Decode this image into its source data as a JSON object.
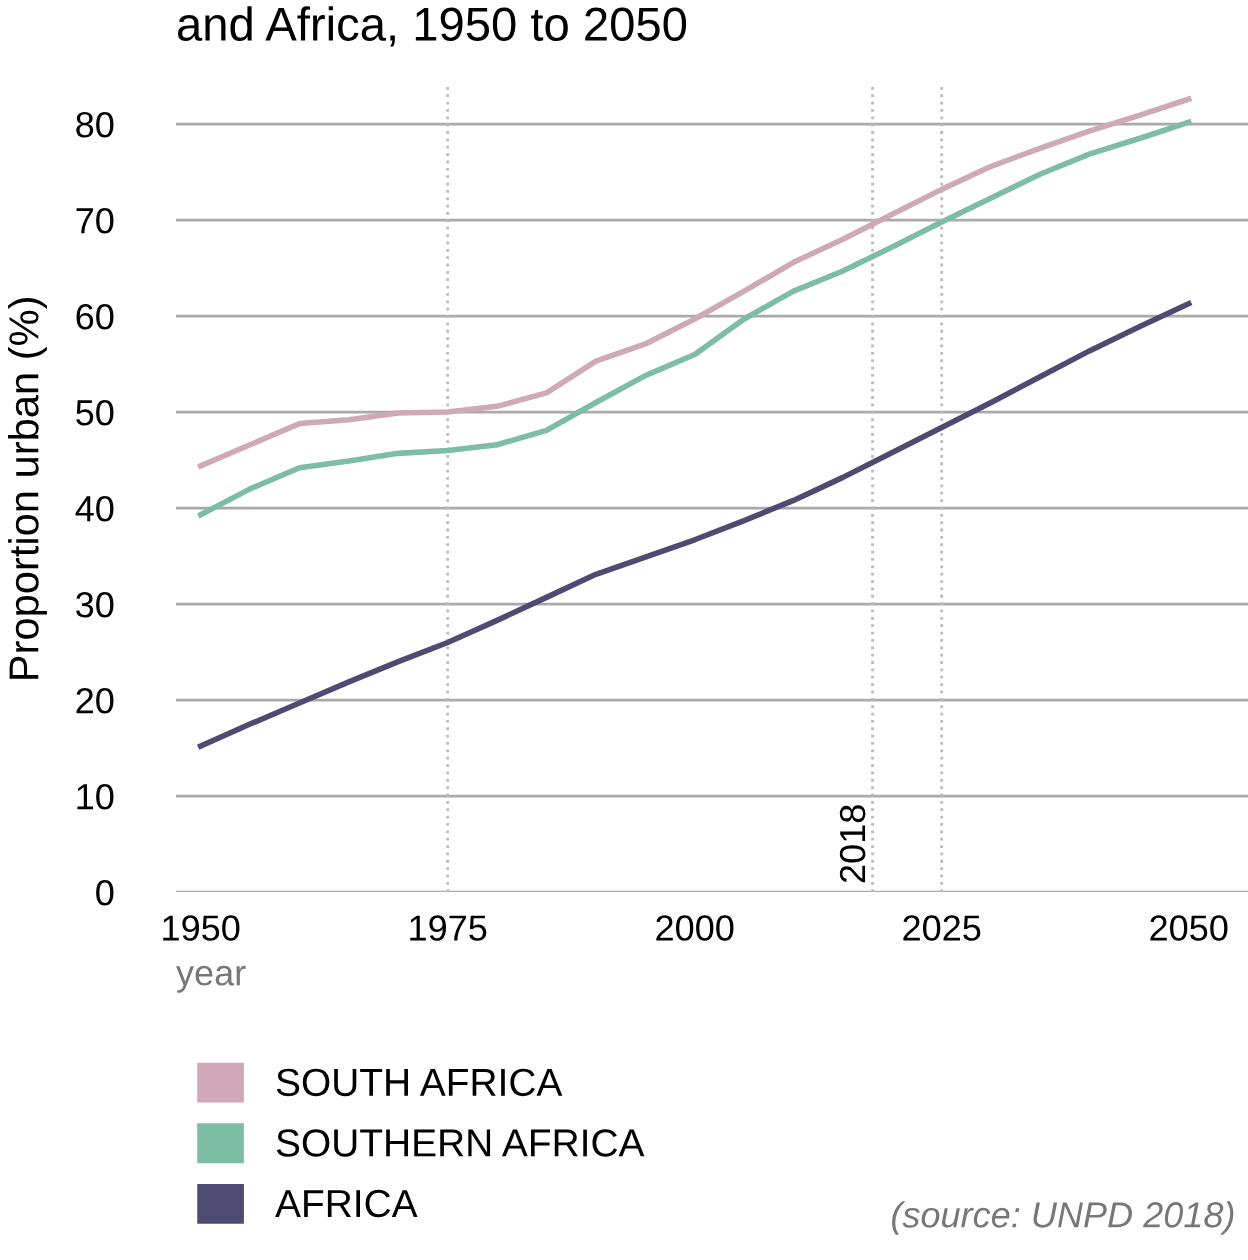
{
  "chart_data": {
    "type": "line",
    "title": "and Africa, 1950 to 2050",
    "xlabel": "year",
    "ylabel": "Proportion urban (%)",
    "x": [
      1950,
      1955,
      1960,
      1965,
      1970,
      1975,
      1980,
      1985,
      1990,
      1995,
      2000,
      2005,
      2010,
      2015,
      2020,
      2025,
      2030,
      2035,
      2040,
      2045,
      2050
    ],
    "series": [
      {
        "name": "SOUTH AFRICA",
        "color": "#cfa9b7",
        "values": [
          44.4,
          46.6,
          48.8,
          49.2,
          49.9,
          50.0,
          50.6,
          52.0,
          55.3,
          57.1,
          59.7,
          62.6,
          65.6,
          68.0,
          70.6,
          73.2,
          75.6,
          77.5,
          79.3,
          80.9,
          82.6
        ]
      },
      {
        "name": "SOUTHERN AFRICA",
        "color": "#7dbca5",
        "values": [
          39.3,
          42.0,
          44.2,
          44.9,
          45.7,
          46.0,
          46.6,
          48.1,
          51.0,
          53.8,
          56.0,
          59.7,
          62.6,
          64.7,
          67.2,
          69.8,
          72.3,
          74.8,
          76.9,
          78.5,
          80.2
        ]
      },
      {
        "name": "AFRICA",
        "color": "#4f4a72",
        "values": [
          15.2,
          17.5,
          19.7,
          21.9,
          24.0,
          26.0,
          28.3,
          30.7,
          33.1,
          34.9,
          36.7,
          38.7,
          40.8,
          43.2,
          45.8,
          48.4,
          51.0,
          53.7,
          56.4,
          58.9,
          61.3
        ]
      }
    ],
    "xlim": [
      1947.5,
      2056
    ],
    "xticks": [
      1950,
      1975,
      2000,
      2025,
      2050
    ],
    "ylim": [
      0,
      84
    ],
    "yticks": [
      0,
      10,
      20,
      30,
      40,
      50,
      60,
      70,
      80
    ],
    "grid": "y",
    "legend": "bottom left",
    "marker": "none",
    "line_style": "solid",
    "ref_lines": [
      {
        "axis": "x",
        "value": 1975,
        "color": "#bbbbbb",
        "line_style": "dotted"
      },
      {
        "axis": "x",
        "value": 2018,
        "label": "2018",
        "color": "#bbbbbb",
        "line_style": "dotted"
      },
      {
        "axis": "x",
        "value": 2025,
        "color": "#bbbbbb",
        "line_style": "dotted"
      }
    ],
    "annotations": [
      "(source: UNPD 2018)"
    ]
  }
}
